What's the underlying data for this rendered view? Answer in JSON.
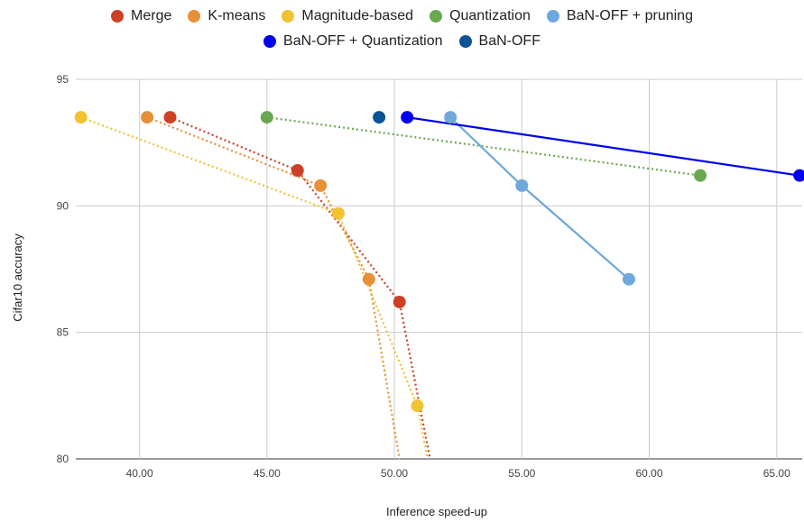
{
  "chart_data": {
    "type": "scatter",
    "xlabel": "Inference speed-up",
    "ylabel": "Cifar10 accuracy",
    "xlim": [
      37.5,
      66
    ],
    "ylim": [
      80,
      95
    ],
    "x_ticks": [
      "40.00",
      "45.00",
      "50.00",
      "55.00",
      "60.00",
      "65.00"
    ],
    "x_tick_values": [
      40,
      45,
      50,
      55,
      60,
      65
    ],
    "y_ticks": [
      "80",
      "85",
      "90",
      "95"
    ],
    "y_tick_values": [
      80,
      85,
      90,
      95
    ],
    "grid": true,
    "legend_position": "top",
    "series": [
      {
        "name": "Merge",
        "color": "#cc4125",
        "line": "dotted",
        "x": [
          41.2,
          46.2,
          50.2,
          51.4
        ],
        "y": [
          93.5,
          91.4,
          86.2,
          80
        ]
      },
      {
        "name": "K-means",
        "color": "#e69138",
        "line": "dotted",
        "x": [
          40.3,
          47.1,
          49.0,
          50.2
        ],
        "y": [
          93.5,
          90.8,
          87.1,
          80
        ]
      },
      {
        "name": "Magnitude-based",
        "color": "#f1c232",
        "line": "dotted",
        "x": [
          37.7,
          47.8,
          50.9,
          51.3
        ],
        "y": [
          93.5,
          89.7,
          82.1,
          80
        ]
      },
      {
        "name": "Quantization",
        "color": "#6aa84f",
        "line": "dotted",
        "x": [
          45.0,
          62.0
        ],
        "y": [
          93.5,
          91.2
        ]
      },
      {
        "name": "BaN-OFF + pruning",
        "color": "#6fa8dc",
        "line": "solid",
        "x": [
          52.2,
          55.0,
          59.2
        ],
        "y": [
          93.5,
          90.8,
          87.1
        ]
      },
      {
        "name": "BaN-OFF + Quantization",
        "color": "#0000ee",
        "line": "solid",
        "x": [
          50.5,
          65.9
        ],
        "y": [
          93.5,
          91.2
        ]
      },
      {
        "name": "BaN-OFF",
        "color": "#0b5394",
        "line": "none",
        "x": [
          49.4
        ],
        "y": [
          93.5
        ]
      }
    ]
  }
}
